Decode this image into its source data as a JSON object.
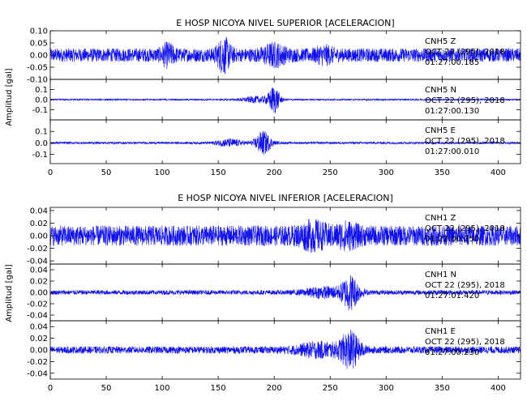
{
  "chart_data": [
    {
      "type": "line",
      "title": "E HOSP NICOYA NIVEL SUPERIOR [ACELERACION]",
      "ylabel": "Amplitud [gal]",
      "xlim": [
        0,
        420
      ],
      "xticks": [
        "0",
        "50",
        "100",
        "150",
        "200",
        "250",
        "300",
        "350",
        "400"
      ],
      "panels": [
        {
          "channel": "CNH5 Z",
          "date": "OCT 22 (295), 2018",
          "time": "01:27:00.185",
          "ylim": [
            -0.1,
            0.1
          ],
          "yticks": [
            "0.10",
            "0.05",
            "0.00",
            "-0.05",
            "-0.10"
          ],
          "noise_amplitude": 0.028,
          "bursts": [
            {
              "t": 105,
              "w": 6,
              "amp": 0.03
            },
            {
              "t": 155,
              "w": 6,
              "amp": 0.055
            },
            {
              "t": 200,
              "w": 10,
              "amp": 0.03
            },
            {
              "t": 245,
              "w": 8,
              "amp": 0.02
            }
          ]
        },
        {
          "channel": "CNH5 N",
          "date": "OCT 22 (295), 2018",
          "time": "01:27:00.130",
          "ylim": [
            -0.2,
            0.2
          ],
          "yticks": [
            "0.1",
            "0.0",
            "-0.1"
          ],
          "noise_amplitude": 0.008,
          "bursts": [
            {
              "t": 185,
              "w": 14,
              "amp": 0.03
            },
            {
              "t": 200,
              "w": 5,
              "amp": 0.13
            }
          ]
        },
        {
          "channel": "CNH5 E",
          "date": "OCT 22 (295), 2018",
          "time": "01:27:00.010",
          "ylim": [
            -0.18,
            0.2
          ],
          "yticks": [
            "0.1",
            "0.0",
            "-0.1"
          ],
          "noise_amplitude": 0.01,
          "bursts": [
            {
              "t": 160,
              "w": 12,
              "amp": 0.03
            },
            {
              "t": 190,
              "w": 7,
              "amp": 0.1
            }
          ]
        }
      ]
    },
    {
      "type": "line",
      "title": "E HOSP NICOYA NIVEL INFERIOR [ACELERACION]",
      "ylabel": "Amplitud [gal]",
      "xlim": [
        0,
        420
      ],
      "xticks": [
        "0",
        "50",
        "100",
        "150",
        "200",
        "250",
        "300",
        "350",
        "400"
      ],
      "panels": [
        {
          "channel": "CNH1 Z",
          "date": "OCT 22 (295), 2018",
          "time": "01:27:00.250",
          "ylim": [
            -0.045,
            0.045
          ],
          "yticks": [
            "0.04",
            "0.02",
            "0.00",
            "-0.02",
            "-0.04"
          ],
          "noise_amplitude": 0.016,
          "bursts": [
            {
              "t": 235,
              "w": 12,
              "amp": 0.012
            },
            {
              "t": 265,
              "w": 10,
              "amp": 0.01
            }
          ]
        },
        {
          "channel": "CNH1 N",
          "date": "OCT 22 (295), 2018",
          "time": "01:27:01.420",
          "ylim": [
            -0.05,
            0.05
          ],
          "yticks": [
            "0.04",
            "0.02",
            "0.00",
            "-0.02",
            "-0.04"
          ],
          "noise_amplitude": 0.004,
          "bursts": [
            {
              "t": 245,
              "w": 18,
              "amp": 0.008
            },
            {
              "t": 268,
              "w": 8,
              "amp": 0.028
            }
          ]
        },
        {
          "channel": "CNH1 E",
          "date": "OCT 22 (295), 2018",
          "time": "01:27:00.230",
          "ylim": [
            -0.05,
            0.05
          ],
          "yticks": [
            "0.04",
            "0.02",
            "0.00",
            "-0.02",
            "-0.04"
          ],
          "noise_amplitude": 0.006,
          "bursts": [
            {
              "t": 240,
              "w": 20,
              "amp": 0.01
            },
            {
              "t": 268,
              "w": 9,
              "amp": 0.028
            }
          ]
        }
      ]
    }
  ],
  "colors": {
    "trace": "#1010e8"
  }
}
